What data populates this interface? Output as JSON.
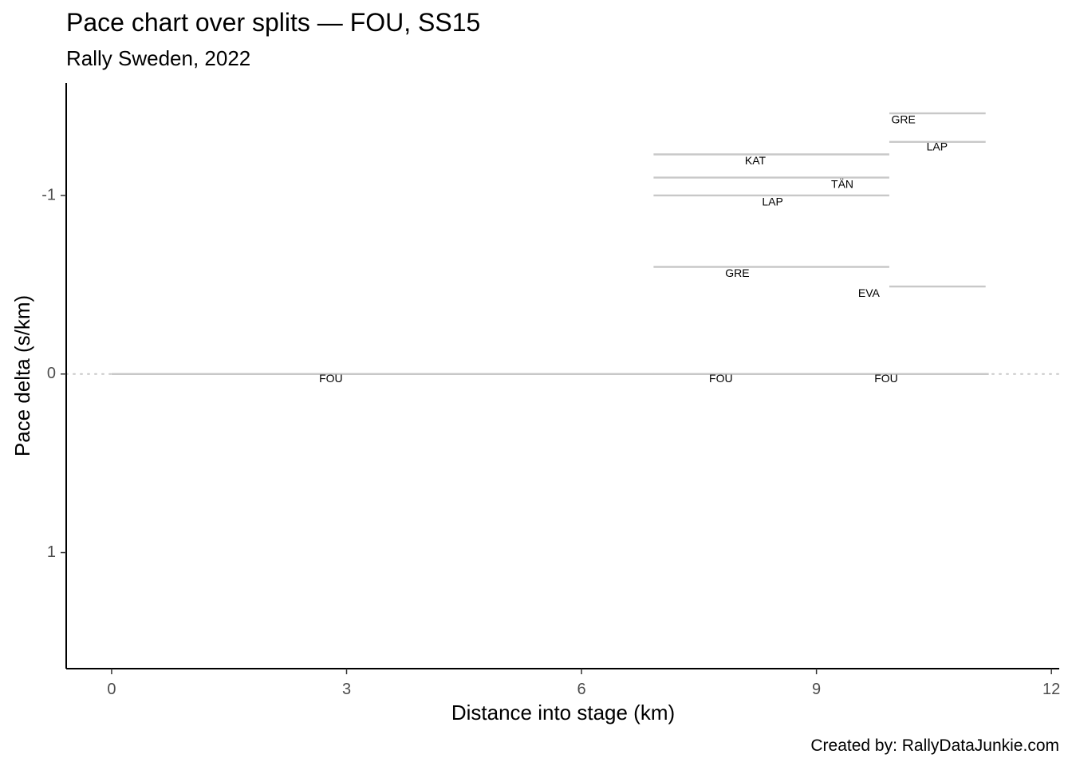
{
  "chart_data": {
    "type": "line",
    "title": "Pace chart over splits — FOU, SS15",
    "subtitle": "Rally Sweden, 2022",
    "xlabel": "Distance into stage (km)",
    "ylabel": "Pace delta (s/km)",
    "caption": "Created by: RallyDataJunkie.com",
    "xlim": [
      -0.58,
      12.1
    ],
    "ylim": [
      1.65,
      -1.63
    ],
    "y_reversed": true,
    "x_ticks": [
      0,
      3,
      6,
      9,
      12
    ],
    "y_ticks": [
      -1,
      0,
      1
    ],
    "y_tick_labels": [
      "-1",
      "0",
      "1"
    ],
    "reference_line": {
      "y": 0,
      "style": "dotted"
    },
    "grid": false,
    "segments": [
      {
        "label": "FOU",
        "x_start": 0.0,
        "x_end": 11.2,
        "y": 0.0
      },
      {
        "label": "KAT",
        "x_start": 6.92,
        "x_end": 9.93,
        "y": -1.23
      },
      {
        "label": "TÄN",
        "x_start": 6.92,
        "x_end": 9.93,
        "y": -1.1
      },
      {
        "label": "LAP",
        "x_start": 6.92,
        "x_end": 9.93,
        "y": -1.0
      },
      {
        "label": "GRE",
        "x_start": 6.92,
        "x_end": 9.93,
        "y": -0.6
      },
      {
        "label": "FOU",
        "x_start": 6.92,
        "x_end": 9.93,
        "y": 0.0
      },
      {
        "label": "GRE",
        "x_start": 9.93,
        "x_end": 11.16,
        "y": -1.46
      },
      {
        "label": "LAP",
        "x_start": 9.93,
        "x_end": 11.16,
        "y": -1.3
      },
      {
        "label": "EVA",
        "x_start": 9.93,
        "x_end": 11.16,
        "y": -0.49
      },
      {
        "label": "FOU",
        "x_start": 9.93,
        "x_end": 11.16,
        "y": 0.0
      }
    ],
    "labels": [
      {
        "text": "FOU",
        "x": 2.8,
        "y": 0.03
      },
      {
        "text": "KAT",
        "x": 8.22,
        "y": -1.19
      },
      {
        "text": "TÄN",
        "x": 9.33,
        "y": -1.06
      },
      {
        "text": "LAP",
        "x": 8.44,
        "y": -0.96
      },
      {
        "text": "GRE",
        "x": 7.99,
        "y": -0.56
      },
      {
        "text": "FOU",
        "x": 7.78,
        "y": 0.03
      },
      {
        "text": "GRE",
        "x": 10.11,
        "y": -1.42
      },
      {
        "text": "LAP",
        "x": 10.54,
        "y": -1.27
      },
      {
        "text": "EVA",
        "x": 9.67,
        "y": -0.45
      },
      {
        "text": "FOU",
        "x": 9.89,
        "y": 0.03
      }
    ],
    "colors": {
      "segment": "#c8c8c8",
      "axis": "#000000",
      "tick_text": "#4d4d4d",
      "reference": "#c8c8c8"
    }
  }
}
